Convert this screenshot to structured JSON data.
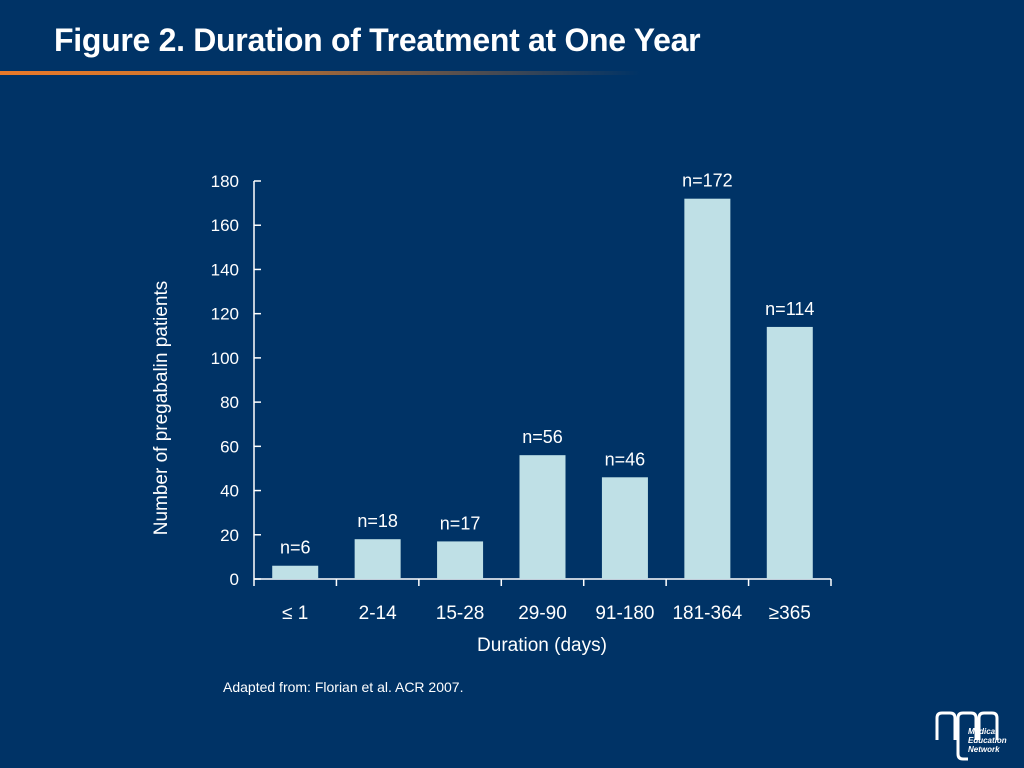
{
  "slide": {
    "title": "Figure 2. Duration of Treatment at One Year",
    "source_note": "Adapted from: Florian et al. ACR 2007."
  },
  "logo": {
    "lines": [
      "Medical",
      "Education",
      "Network"
    ]
  },
  "colors": {
    "background": "#003366",
    "bar": "#bfe0e6",
    "accent": "#e8792a",
    "text": "#ffffff"
  },
  "chart_data": {
    "type": "bar",
    "categories": [
      "≤ 1",
      "2-14",
      "15-28",
      "29-90",
      "91-180",
      "181-364",
      "≥365"
    ],
    "values": [
      6,
      18,
      17,
      56,
      46,
      172,
      114
    ],
    "data_labels": [
      "n=6",
      "n=18",
      "n=17",
      "n=56",
      "n=46",
      "n=172",
      "n=114"
    ],
    "xlabel": "Duration (days)",
    "ylabel": "Number of pregabalin patients",
    "ylim": [
      0,
      180
    ],
    "yticks": [
      0,
      20,
      40,
      60,
      80,
      100,
      120,
      140,
      160,
      180
    ],
    "grid": false,
    "legend": "none"
  }
}
